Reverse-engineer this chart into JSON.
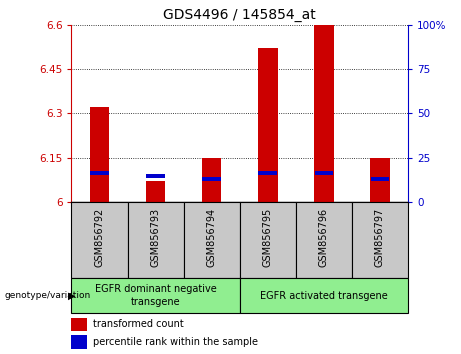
{
  "title": "GDS4496 / 145854_at",
  "samples": [
    "GSM856792",
    "GSM856793",
    "GSM856794",
    "GSM856795",
    "GSM856796",
    "GSM856797"
  ],
  "red_values": [
    6.32,
    6.07,
    6.15,
    6.52,
    6.6,
    6.15
  ],
  "blue_values": [
    6.09,
    6.08,
    6.07,
    6.09,
    6.09,
    6.07
  ],
  "ymin": 6.0,
  "ymax": 6.6,
  "yticks": [
    6.0,
    6.15,
    6.3,
    6.45,
    6.6
  ],
  "ytick_labels": [
    "6",
    "6.15",
    "6.3",
    "6.45",
    "6.6"
  ],
  "right_yticks": [
    0,
    25,
    50,
    75,
    100
  ],
  "right_ytick_labels": [
    "0",
    "25",
    "50",
    "75",
    "100%"
  ],
  "red_color": "#cc0000",
  "blue_color": "#0000cc",
  "bar_width": 0.35,
  "group1_label": "EGFR dominant negative\ntransgene",
  "group2_label": "EGFR activated transgene",
  "legend_red": "transformed count",
  "legend_blue": "percentile rank within the sample",
  "genotype_label": "genotype/variation",
  "group_bg_color": "#90ee90",
  "xlabel_bg_color": "#c8c8c8",
  "title_fontsize": 10,
  "tick_fontsize": 7.5,
  "sample_fontsize": 7,
  "group_fontsize": 7,
  "legend_fontsize": 7
}
